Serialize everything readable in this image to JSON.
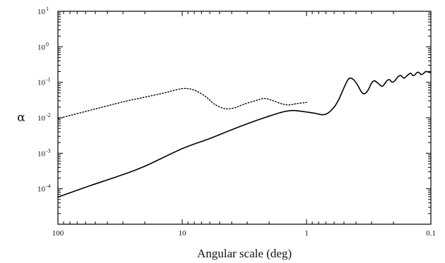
{
  "chart_data": {
    "type": "line",
    "title": "",
    "xlabel": "Angular scale (deg)",
    "ylabel": "α",
    "x_scale": "log",
    "x_reversed": true,
    "xlim": [
      100,
      0.1
    ],
    "y_scale": "log",
    "ylim": [
      1e-05,
      10
    ],
    "grid": false,
    "legend": "none",
    "x_ticks": [
      {
        "value": 100,
        "label": "100"
      },
      {
        "value": 10,
        "label": "10"
      },
      {
        "value": 1,
        "label": "1"
      },
      {
        "value": 0.1,
        "label": "0.1"
      }
    ],
    "y_ticks": [
      {
        "value": 10,
        "base": "10",
        "exp": "1"
      },
      {
        "value": 1,
        "base": "10",
        "exp": "0"
      },
      {
        "value": 0.1,
        "base": "10",
        "exp": "-1"
      },
      {
        "value": 0.01,
        "base": "10",
        "exp": "-2"
      },
      {
        "value": 0.001,
        "base": "10",
        "exp": "-3"
      },
      {
        "value": 0.0001,
        "base": "10",
        "exp": "-4"
      }
    ],
    "series": [
      {
        "style": "solid",
        "color": "#000000",
        "points": [
          [
            100,
            5.8e-05
          ],
          [
            60,
            0.00011
          ],
          [
            30,
            0.00025
          ],
          [
            20,
            0.00043
          ],
          [
            10,
            0.00135
          ],
          [
            6,
            0.0026
          ],
          [
            4,
            0.0046
          ],
          [
            2.5,
            0.0085
          ],
          [
            1.8,
            0.0125
          ],
          [
            1.5,
            0.015
          ],
          [
            1.3,
            0.016
          ],
          [
            1.15,
            0.0155
          ],
          [
            1.0,
            0.0145
          ],
          [
            0.85,
            0.0133
          ],
          [
            0.75,
            0.0122
          ],
          [
            0.68,
            0.0132
          ],
          [
            0.6,
            0.02
          ],
          [
            0.55,
            0.033
          ],
          [
            0.5,
            0.07
          ],
          [
            0.47,
            0.11
          ],
          [
            0.45,
            0.13
          ],
          [
            0.42,
            0.12
          ],
          [
            0.39,
            0.085
          ],
          [
            0.36,
            0.052
          ],
          [
            0.34,
            0.048
          ],
          [
            0.32,
            0.06
          ],
          [
            0.3,
            0.095
          ],
          [
            0.285,
            0.11
          ],
          [
            0.27,
            0.098
          ],
          [
            0.25,
            0.078
          ],
          [
            0.24,
            0.083
          ],
          [
            0.225,
            0.112
          ],
          [
            0.215,
            0.118
          ],
          [
            0.205,
            0.1
          ],
          [
            0.195,
            0.11
          ],
          [
            0.185,
            0.14
          ],
          [
            0.175,
            0.155
          ],
          [
            0.165,
            0.13
          ],
          [
            0.16,
            0.14
          ],
          [
            0.15,
            0.17
          ],
          [
            0.145,
            0.18
          ],
          [
            0.14,
            0.155
          ],
          [
            0.135,
            0.16
          ],
          [
            0.13,
            0.185
          ],
          [
            0.125,
            0.19
          ],
          [
            0.12,
            0.165
          ],
          [
            0.115,
            0.175
          ],
          [
            0.11,
            0.2
          ],
          [
            0.105,
            0.195
          ],
          [
            0.1,
            0.185
          ]
        ]
      },
      {
        "style": "dotted",
        "color": "#000000",
        "points": [
          [
            100,
            0.0095
          ],
          [
            60,
            0.015
          ],
          [
            30,
            0.028
          ],
          [
            20,
            0.038
          ],
          [
            14,
            0.05
          ],
          [
            11,
            0.062
          ],
          [
            9.5,
            0.067
          ],
          [
            8,
            0.06
          ],
          [
            6.5,
            0.04
          ],
          [
            5.5,
            0.024
          ],
          [
            4.5,
            0.018
          ],
          [
            3.8,
            0.019
          ],
          [
            3.2,
            0.024
          ],
          [
            2.6,
            0.03
          ],
          [
            2.2,
            0.035
          ],
          [
            1.9,
            0.031
          ],
          [
            1.6,
            0.025
          ],
          [
            1.4,
            0.023
          ],
          [
            1.2,
            0.025
          ],
          [
            1.0,
            0.027
          ]
        ]
      }
    ]
  }
}
